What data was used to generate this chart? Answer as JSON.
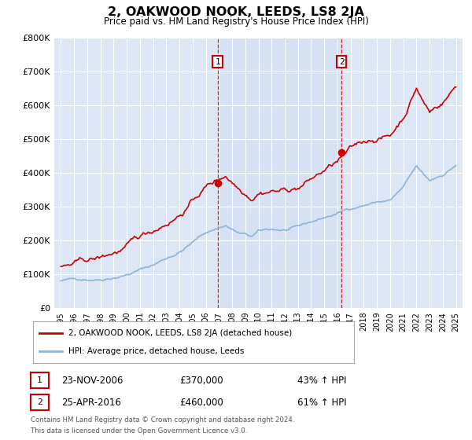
{
  "title": "2, OAKWOOD NOOK, LEEDS, LS8 2JA",
  "subtitle": "Price paid vs. HM Land Registry's House Price Index (HPI)",
  "ylim": [
    0,
    800000
  ],
  "yticks": [
    0,
    100000,
    200000,
    300000,
    400000,
    500000,
    600000,
    700000,
    800000
  ],
  "ytick_labels": [
    "£0",
    "£100K",
    "£200K",
    "£300K",
    "£400K",
    "£500K",
    "£600K",
    "£700K",
    "£800K"
  ],
  "background_color": "#ffffff",
  "plot_bg_color": "#dce6f5",
  "grid_color": "#ffffff",
  "hpi_line_color": "#8ab4d8",
  "price_line_color": "#cc0000",
  "vline_color": "#cc0000",
  "sale1_year": 2006.9,
  "sale1_price": 370000,
  "sale1_label": "1",
  "sale1_date_str": "23-NOV-2006",
  "sale1_amount_str": "£370,000",
  "sale1_hpi_str": "43% ↑ HPI",
  "sale2_year": 2016.32,
  "sale2_price": 460000,
  "sale2_label": "2",
  "sale2_date_str": "25-APR-2016",
  "sale2_amount_str": "£460,000",
  "sale2_hpi_str": "61% ↑ HPI",
  "legend_line1": "2, OAKWOOD NOOK, LEEDS, LS8 2JA (detached house)",
  "legend_line2": "HPI: Average price, detached house, Leeds",
  "footnote1": "Contains HM Land Registry data © Crown copyright and database right 2024.",
  "footnote2": "This data is licensed under the Open Government Licence v3.0."
}
